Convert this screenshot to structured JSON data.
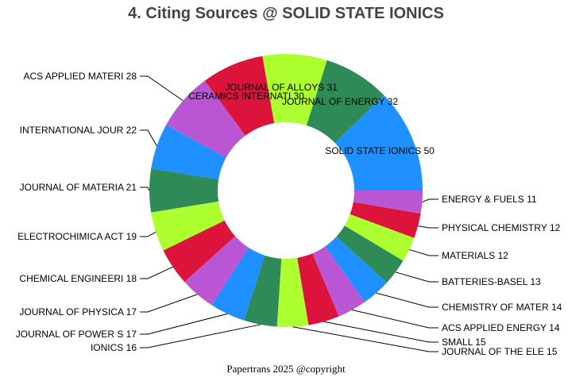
{
  "chart_data": {
    "type": "pie",
    "title": "4. Citing Sources @ SOLID STATE IONICS",
    "hole": true,
    "categories": [
      "SOLID STATE IONICS",
      "JOURNAL OF ENERGY ",
      "JOURNAL OF ALLOYS ",
      "CERAMICS INTERNATI",
      "ACS APPLIED MATERI",
      "INTERNATIONAL JOUR",
      "JOURNAL OF MATERIA",
      "ELECTROCHIMICA ACT",
      "CHEMICAL ENGINEERI",
      "JOURNAL OF PHYSICA",
      "JOURNAL OF POWER S",
      "IONICS",
      "JOURNAL OF THE ELE",
      "SMALL",
      "ACS APPLIED ENERGY",
      "CHEMISTRY OF MATER",
      "BATTERIES-BASEL",
      "MATERIALS",
      "PHYSICAL CHEMISTRY",
      "ENERGY & FUELS"
    ],
    "values": [
      50,
      32,
      31,
      30,
      28,
      22,
      21,
      19,
      18,
      17,
      17,
      16,
      15,
      15,
      14,
      14,
      13,
      12,
      12,
      11
    ],
    "labels": [
      "SOLID STATE IONICS 50",
      "JOURNAL OF ENERGY  32",
      "JOURNAL OF ALLOYS  31",
      "CERAMICS INTERNATI 30",
      "ACS APPLIED MATERI 28",
      "INTERNATIONAL JOUR 22",
      "JOURNAL OF MATERIA 21",
      "ELECTROCHIMICA ACT 19",
      "CHEMICAL ENGINEERI 18",
      "JOURNAL OF PHYSICA 17",
      "JOURNAL OF POWER S 17",
      "IONICS 16",
      "JOURNAL OF THE ELE 15",
      "SMALL 15",
      "ACS APPLIED ENERGY 14",
      "CHEMISTRY OF MATER 14",
      "BATTERIES-BASEL 13",
      "MATERIALS 12",
      "PHYSICAL CHEMISTRY 12",
      "ENERGY & FUELS 11"
    ],
    "colors": [
      "#1E90FF",
      "#2E8B57",
      "#ADFF2F",
      "#DC143C",
      "#BA55D3"
    ],
    "direction": "counterclockwise",
    "legend": "none"
  },
  "footer": "Papertrans 2025 @copyright"
}
